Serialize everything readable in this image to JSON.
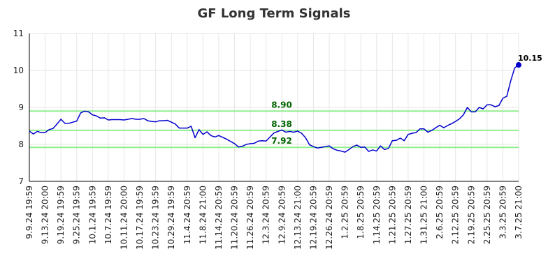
{
  "chart_data": {
    "type": "line",
    "title": "GF Long Term Signals",
    "xlabel": "",
    "ylabel": "",
    "ylim": [
      7,
      11
    ],
    "yticks": [
      7,
      8,
      9,
      10,
      11
    ],
    "grid": true,
    "x_tick_labels": [
      "9.9.24 19:59",
      "9.13.24 20:00",
      "9.19.24 19:59",
      "9.25.24 19:59",
      "10.1.24 19:59",
      "10.7.24 19:59",
      "10.11.24 20:00",
      "10.17.24 19:59",
      "10.23.24 19:59",
      "10.29.24 19:59",
      "11.4.24 20:59",
      "11.8.24 21:00",
      "11.14.24 20:59",
      "11.20.24 20:59",
      "11.26.24 20:59",
      "12.3.24 20:59",
      "12.9.24 20:59",
      "12.13.24 21:00",
      "12.19.24 20:59",
      "12.26.24 20:59",
      "1.2.25 20:59",
      "1.8.25 20:59",
      "1.14.25 20:59",
      "1.21.25 20:59",
      "1.27.25 20:59",
      "1.31.25 21:00",
      "2.6.25 20:59",
      "2.12.25 20:59",
      "2.19.25 20:59",
      "2.25.25 20:59",
      "3.3.25 20:59",
      "3.7.25 21:00"
    ],
    "series": [
      {
        "color": "#0000cc",
        "values": [
          8.36,
          8.28,
          8.35,
          8.32,
          8.32,
          8.4,
          8.43,
          8.55,
          8.68,
          8.57,
          8.57,
          8.6,
          8.63,
          8.85,
          8.9,
          8.88,
          8.8,
          8.77,
          8.71,
          8.72,
          8.66,
          8.67,
          8.67,
          8.67,
          8.66,
          8.68,
          8.7,
          8.68,
          8.68,
          8.7,
          8.64,
          8.62,
          8.61,
          8.64,
          8.64,
          8.65,
          8.6,
          8.55,
          8.44,
          8.44,
          8.44,
          8.49,
          8.18,
          8.4,
          8.27,
          8.34,
          8.24,
          8.2,
          8.24,
          8.19,
          8.14,
          8.08,
          8.02,
          7.93,
          7.95,
          8.0,
          8.02,
          8.03,
          8.09,
          8.1,
          8.09,
          8.2,
          8.31,
          8.35,
          8.39,
          8.33,
          8.35,
          8.33,
          8.36,
          8.3,
          8.18,
          7.99,
          7.94,
          7.9,
          7.92,
          7.94,
          7.96,
          7.88,
          7.84,
          7.82,
          7.79,
          7.86,
          7.94,
          7.98,
          7.92,
          7.93,
          7.81,
          7.85,
          7.82,
          7.96,
          7.86,
          7.89,
          8.1,
          8.11,
          8.17,
          8.1,
          8.27,
          8.3,
          8.32,
          8.42,
          8.42,
          8.33,
          8.38,
          8.45,
          8.52,
          8.45,
          8.51,
          8.56,
          8.62,
          8.69,
          8.8,
          9.0,
          8.88,
          8.88,
          9.0,
          8.96,
          9.07,
          9.07,
          9.02,
          9.05,
          9.25,
          9.3,
          9.72,
          10.07,
          10.15
        ]
      }
    ],
    "reference_lines": [
      {
        "value": 8.9,
        "label": "8.90",
        "color": "#90ee90"
      },
      {
        "value": 8.38,
        "label": "8.38",
        "color": "#90ee90"
      },
      {
        "value": 7.92,
        "label": "7.92",
        "color": "#90ee90"
      }
    ],
    "last_point_label": "10.15"
  }
}
